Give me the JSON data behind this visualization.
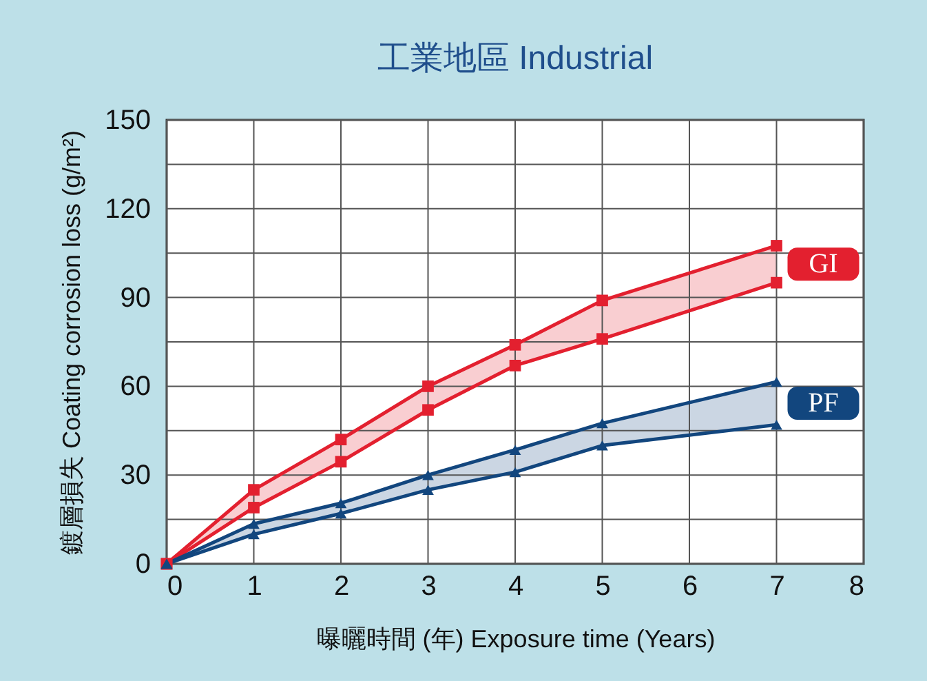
{
  "chart_data": {
    "type": "line",
    "title": "工業地區  Industrial",
    "xlabel": "曝曬時間 (年)   Exposure time (Years)",
    "ylabel": "鍍層損失 Coating corrosion loss (g/m²)",
    "x": [
      0,
      1,
      2,
      3,
      4,
      5,
      7
    ],
    "series": [
      {
        "name": "GI",
        "color": "#e3202f",
        "marker": "square",
        "values": [
          0,
          25,
          42,
          60,
          74,
          89,
          107.5
        ],
        "lower": [
          0,
          19,
          34.5,
          52,
          67,
          76,
          95
        ],
        "upper": [
          0,
          25,
          42,
          60,
          74,
          89,
          107.5
        ]
      },
      {
        "color": "#e3202f",
        "marker": "square",
        "values": [
          0,
          19,
          34.5,
          52,
          67,
          76,
          95
        ]
      },
      {
        "name": "PF",
        "color": "#12467e",
        "marker": "triangle",
        "values": [
          0,
          13.5,
          20.5,
          30,
          38.5,
          47.5,
          61.5
        ],
        "lower": [
          0,
          10,
          17,
          25,
          31,
          40,
          47
        ],
        "upper": [
          0,
          13.5,
          20.5,
          30,
          38.5,
          47.5,
          61.5
        ]
      },
      {
        "color": "#12467e",
        "marker": "triangle",
        "values": [
          0,
          10,
          17,
          25,
          31,
          40,
          47
        ]
      }
    ],
    "xlim": [
      0,
      8
    ],
    "xticks": [
      0,
      1,
      2,
      3,
      4,
      5,
      6,
      7,
      8
    ],
    "ylim": [
      0,
      150
    ],
    "yticks": [
      0,
      {
        "value": 15,
        "label": null
      },
      30,
      {
        "value": 45,
        "label": null
      },
      60,
      {
        "value": 75,
        "label": null
      },
      90,
      {
        "value": 105,
        "label": null
      },
      120,
      {
        "value": 135,
        "label": null
      },
      150
    ],
    "grid": true,
    "legend": "right",
    "line_style": "solid"
  }
}
